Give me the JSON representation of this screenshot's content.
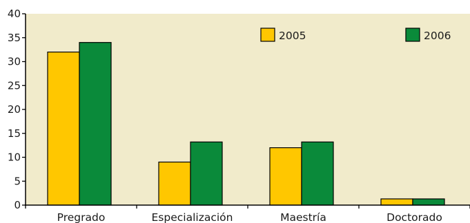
{
  "chart_data": {
    "type": "bar",
    "categories": [
      "Pregrado",
      "Especialización",
      "Maestría",
      "Doctorado"
    ],
    "series": [
      {
        "name": "2005",
        "values": [
          32,
          9,
          12,
          1.3
        ]
      },
      {
        "name": "2006",
        "values": [
          34,
          13.2,
          13.2,
          1.3
        ]
      }
    ],
    "ylim": [
      0,
      40
    ],
    "yticks": [
      "0",
      "5",
      "10",
      "15",
      "20",
      "25",
      "30",
      "35",
      "40"
    ],
    "title": "",
    "xlabel": "",
    "ylabel": "",
    "grid": false,
    "legend_position": "top-right",
    "colors": {
      "2005": "#ffc700",
      "2006": "#0a8a3a",
      "plot_background": "#f1ebcb",
      "bar_outline": "#000000"
    }
  }
}
